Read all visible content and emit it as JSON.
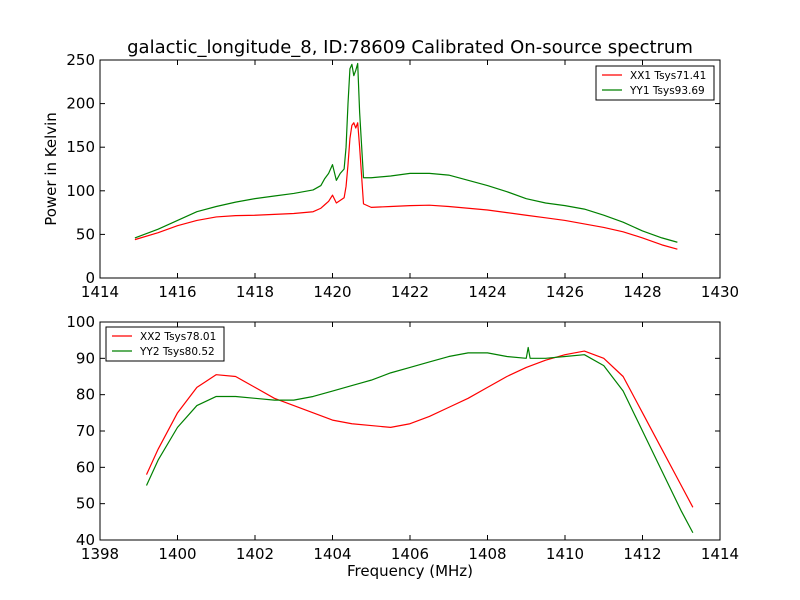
{
  "chart_data": [
    {
      "type": "line",
      "title": "galactic_longitude_8, ID:78609 Calibrated On-source spectrum",
      "xlabel": "",
      "ylabel": "Power in Kelvin",
      "xlim": [
        1414,
        1430
      ],
      "ylim": [
        0,
        250
      ],
      "xticks": [
        1414,
        1416,
        1418,
        1420,
        1422,
        1424,
        1426,
        1428,
        1430
      ],
      "yticks": [
        0,
        50,
        100,
        150,
        200,
        250
      ],
      "legend_position": "top-right",
      "series": [
        {
          "name": "XX1 Tsys71.41",
          "color": "#ff0000",
          "x": [
            1414.9,
            1415.5,
            1416.0,
            1416.5,
            1417.0,
            1417.5,
            1418.0,
            1418.5,
            1419.0,
            1419.5,
            1419.7,
            1419.8,
            1419.9,
            1420.0,
            1420.1,
            1420.2,
            1420.3,
            1420.35,
            1420.4,
            1420.45,
            1420.5,
            1420.55,
            1420.6,
            1420.65,
            1420.7,
            1420.8,
            1421.0,
            1421.5,
            1422.0,
            1422.5,
            1423.0,
            1423.5,
            1424.0,
            1424.5,
            1425.0,
            1425.5,
            1426.0,
            1426.5,
            1427.0,
            1427.5,
            1428.0,
            1428.5,
            1428.9
          ],
          "y": [
            44,
            52,
            60,
            66,
            70,
            71.5,
            72,
            73,
            74,
            76,
            80,
            84,
            88,
            95,
            86,
            89,
            92,
            105,
            130,
            160,
            175,
            178,
            172,
            178,
            150,
            85,
            81,
            82,
            83,
            83.5,
            82,
            80,
            78,
            75,
            72,
            69,
            66,
            62,
            58,
            53,
            46,
            38,
            33
          ]
        },
        {
          "name": "YY1 Tsys93.69",
          "color": "#008000",
          "x": [
            1414.9,
            1415.5,
            1416.0,
            1416.5,
            1417.0,
            1417.5,
            1418.0,
            1418.5,
            1419.0,
            1419.5,
            1419.7,
            1419.8,
            1419.9,
            1420.0,
            1420.1,
            1420.2,
            1420.3,
            1420.35,
            1420.4,
            1420.45,
            1420.5,
            1420.55,
            1420.6,
            1420.65,
            1420.7,
            1420.8,
            1421.0,
            1421.5,
            1422.0,
            1422.5,
            1423.0,
            1423.5,
            1424.0,
            1424.5,
            1425.0,
            1425.5,
            1426.0,
            1426.5,
            1427.0,
            1427.5,
            1428.0,
            1428.5,
            1428.9
          ],
          "y": [
            46,
            56,
            66,
            76,
            82,
            87,
            91,
            94,
            97,
            101,
            106,
            114,
            120,
            130,
            112,
            120,
            125,
            150,
            200,
            240,
            245,
            232,
            238,
            246,
            190,
            115,
            115,
            117,
            120,
            120,
            118,
            112,
            106,
            99,
            91,
            86,
            83,
            79,
            72,
            64,
            54,
            46,
            41
          ]
        }
      ]
    },
    {
      "type": "line",
      "title": "",
      "xlabel": "Frequency (MHz)",
      "ylabel": "",
      "xlim": [
        1398,
        1414
      ],
      "ylim": [
        40,
        100
      ],
      "xticks": [
        1398,
        1400,
        1402,
        1404,
        1406,
        1408,
        1410,
        1412,
        1414
      ],
      "yticks": [
        40,
        50,
        60,
        70,
        80,
        90,
        100
      ],
      "legend_position": "top-left",
      "series": [
        {
          "name": "XX2 Tsys78.01",
          "color": "#ff0000",
          "x": [
            1399.2,
            1399.5,
            1400.0,
            1400.5,
            1401.0,
            1401.5,
            1402.0,
            1402.5,
            1403.0,
            1403.5,
            1404.0,
            1404.5,
            1405.0,
            1405.5,
            1406.0,
            1406.5,
            1407.0,
            1407.5,
            1408.0,
            1408.5,
            1409.0,
            1409.5,
            1410.0,
            1410.5,
            1411.0,
            1411.5,
            1412.0,
            1412.5,
            1413.0,
            1413.3
          ],
          "y": [
            58,
            65,
            75,
            82,
            85.5,
            85,
            82,
            79,
            77,
            75,
            73,
            72,
            71.5,
            71,
            72,
            74,
            76.5,
            79,
            82,
            85,
            87.5,
            89.5,
            91,
            92,
            90,
            85,
            75,
            65,
            55,
            49
          ]
        },
        {
          "name": "YY2 Tsys80.52",
          "color": "#008000",
          "x": [
            1399.2,
            1399.5,
            1400.0,
            1400.5,
            1401.0,
            1401.5,
            1402.0,
            1402.5,
            1403.0,
            1403.5,
            1404.0,
            1404.5,
            1405.0,
            1405.5,
            1406.0,
            1406.5,
            1407.0,
            1407.5,
            1408.0,
            1408.5,
            1409.0,
            1409.05,
            1409.1,
            1409.5,
            1410.0,
            1410.5,
            1411.0,
            1411.5,
            1412.0,
            1412.5,
            1413.0,
            1413.3
          ],
          "y": [
            55,
            62,
            71,
            77,
            79.5,
            79.5,
            79,
            78.5,
            78.5,
            79.5,
            81,
            82.5,
            84,
            86,
            87.5,
            89,
            90.5,
            91.5,
            91.5,
            90.5,
            90,
            93,
            90,
            90,
            90.5,
            91,
            88,
            81,
            70,
            59,
            48,
            42
          ]
        }
      ]
    }
  ]
}
